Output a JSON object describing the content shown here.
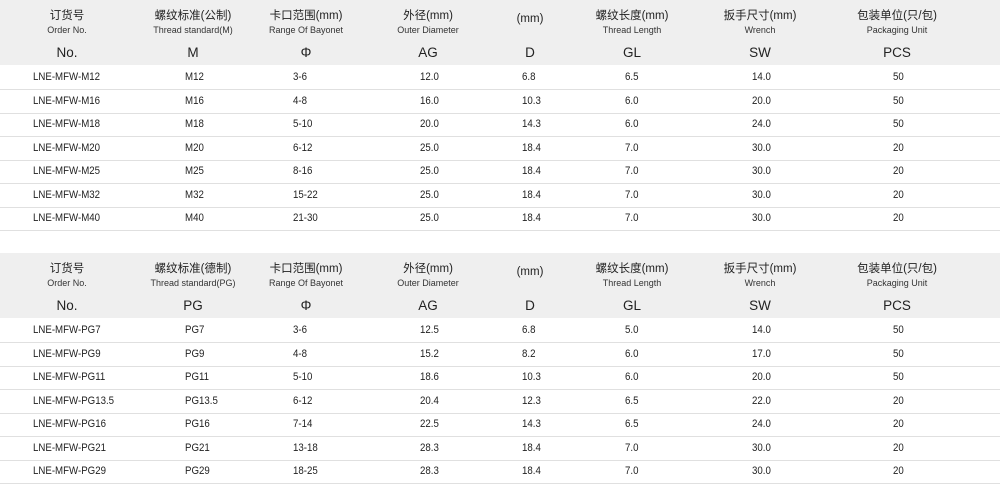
{
  "tables": [
    {
      "header": {
        "columns": [
          {
            "zh": "订货号",
            "en": "Order No.",
            "symbol": "No."
          },
          {
            "zh": "螺纹标准(公制)",
            "en": "Thread standard(M)",
            "symbol": "M"
          },
          {
            "zh": "卡口范围(mm)",
            "en": "Range Of Bayonet",
            "symbol": "Φ"
          },
          {
            "zh": "外径(mm)",
            "en": "Outer Diameter",
            "symbol": "AG"
          },
          {
            "zh": "(mm)",
            "symbol": "D"
          },
          {
            "zh": "螺纹长度(mm)",
            "en": "Thread Length",
            "symbol": "GL"
          },
          {
            "zh": "扳手尺寸(mm)",
            "en": "Wrench",
            "symbol": "SW"
          },
          {
            "zh": "包装单位(只/包)",
            "en": "Packaging Unit",
            "symbol": "PCS"
          }
        ]
      },
      "rows": [
        [
          "LNE-MFW-M12",
          "M12",
          "3-6",
          "12.0",
          "6.8",
          "6.5",
          "14.0",
          "50"
        ],
        [
          "LNE-MFW-M16",
          "M16",
          "4-8",
          "16.0",
          "10.3",
          "6.0",
          "20.0",
          "50"
        ],
        [
          "LNE-MFW-M18",
          "M18",
          "5-10",
          "20.0",
          "14.3",
          "6.0",
          "24.0",
          "50"
        ],
        [
          "LNE-MFW-M20",
          "M20",
          "6-12",
          "25.0",
          "18.4",
          "7.0",
          "30.0",
          "20"
        ],
        [
          "LNE-MFW-M25",
          "M25",
          "8-16",
          "25.0",
          "18.4",
          "7.0",
          "30.0",
          "20"
        ],
        [
          "LNE-MFW-M32",
          "M32",
          "15-22",
          "25.0",
          "18.4",
          "7.0",
          "30.0",
          "20"
        ],
        [
          "LNE-MFW-M40",
          "M40",
          "21-30",
          "25.0",
          "18.4",
          "7.0",
          "30.0",
          "20"
        ]
      ]
    },
    {
      "header": {
        "columns": [
          {
            "zh": "订货号",
            "en": "Order No.",
            "symbol": "No."
          },
          {
            "zh": "螺纹标准(德制)",
            "en": "Thread standard(PG)",
            "symbol": "PG"
          },
          {
            "zh": "卡口范围(mm)",
            "en": "Range Of Bayonet",
            "symbol": "Φ"
          },
          {
            "zh": "外径(mm)",
            "en": "Outer Diameter",
            "symbol": "AG"
          },
          {
            "zh": "(mm)",
            "symbol": "D"
          },
          {
            "zh": "螺纹长度(mm)",
            "en": "Thread Length",
            "symbol": "GL"
          },
          {
            "zh": "扳手尺寸(mm)",
            "en": "Wrench",
            "symbol": "SW"
          },
          {
            "zh": "包装单位(只/包)",
            "en": "Packaging Unit",
            "symbol": "PCS"
          }
        ]
      },
      "rows": [
        [
          "LNE-MFW-PG7",
          "PG7",
          "3-6",
          "12.5",
          "6.8",
          "5.0",
          "14.0",
          "50"
        ],
        [
          "LNE-MFW-PG9",
          "PG9",
          "4-8",
          "15.2",
          "8.2",
          "6.0",
          "17.0",
          "50"
        ],
        [
          "LNE-MFW-PG11",
          "PG11",
          "5-10",
          "18.6",
          "10.3",
          "6.0",
          "20.0",
          "50"
        ],
        [
          "LNE-MFW-PG13.5",
          "PG13.5",
          "6-12",
          "20.4",
          "12.3",
          "6.5",
          "22.0",
          "20"
        ],
        [
          "LNE-MFW-PG16",
          "PG16",
          "7-14",
          "22.5",
          "14.3",
          "6.5",
          "24.0",
          "20"
        ],
        [
          "LNE-MFW-PG21",
          "PG21",
          "13-18",
          "28.3",
          "18.4",
          "7.0",
          "30.0",
          "20"
        ],
        [
          "LNE-MFW-PG29",
          "PG29",
          "18-25",
          "28.3",
          "18.4",
          "7.0",
          "30.0",
          "20"
        ]
      ]
    }
  ]
}
